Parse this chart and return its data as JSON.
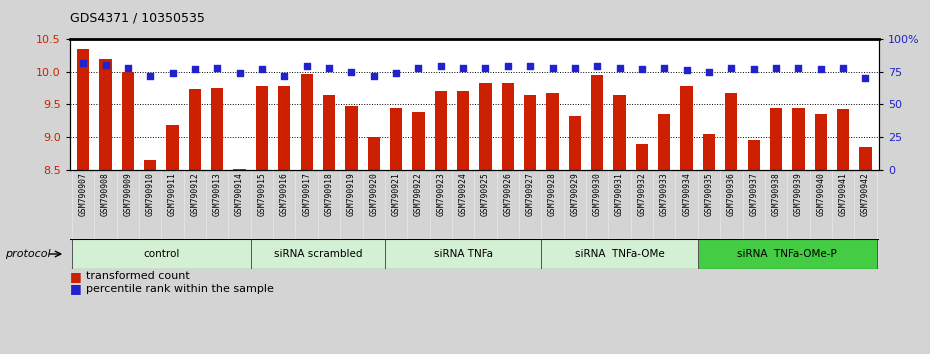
{
  "title": "GDS4371 / 10350535",
  "samples": [
    "GSM790907",
    "GSM790908",
    "GSM790909",
    "GSM790910",
    "GSM790911",
    "GSM790912",
    "GSM790913",
    "GSM790914",
    "GSM790915",
    "GSM790916",
    "GSM790917",
    "GSM790918",
    "GSM790919",
    "GSM790920",
    "GSM790921",
    "GSM790922",
    "GSM790923",
    "GSM790924",
    "GSM790925",
    "GSM790926",
    "GSM790927",
    "GSM790928",
    "GSM790929",
    "GSM790930",
    "GSM790931",
    "GSM790932",
    "GSM790933",
    "GSM790934",
    "GSM790935",
    "GSM790936",
    "GSM790937",
    "GSM790938",
    "GSM790939",
    "GSM790940",
    "GSM790941",
    "GSM790942"
  ],
  "bar_values": [
    10.35,
    10.19,
    10.0,
    8.65,
    9.18,
    9.73,
    9.75,
    8.52,
    9.78,
    9.78,
    9.96,
    9.65,
    9.47,
    9.0,
    9.44,
    9.38,
    9.7,
    9.7,
    9.83,
    9.83,
    9.65,
    9.67,
    9.33,
    9.95,
    9.65,
    8.9,
    9.35,
    9.78,
    9.05,
    9.68,
    8.95,
    9.45,
    9.45,
    9.35,
    9.43,
    8.85
  ],
  "dot_values": [
    82,
    80,
    78,
    72,
    74,
    77,
    78,
    74,
    77,
    72,
    79,
    78,
    75,
    72,
    74,
    78,
    79,
    78,
    78,
    79,
    79,
    78,
    78,
    79,
    78,
    77,
    78,
    76,
    75,
    78,
    77,
    78,
    78,
    77,
    78,
    70
  ],
  "groups": [
    {
      "label": "control",
      "start": 0,
      "end": 8,
      "color": "#d4f0d4"
    },
    {
      "label": "siRNA scrambled",
      "start": 8,
      "end": 14,
      "color": "#d4f0d4"
    },
    {
      "label": "siRNA TNFa",
      "start": 14,
      "end": 21,
      "color": "#d4f0d4"
    },
    {
      "label": "siRNA  TNFa-OMe",
      "start": 21,
      "end": 28,
      "color": "#d4f0d4"
    },
    {
      "label": "siRNA  TNFa-OMe-P",
      "start": 28,
      "end": 36,
      "color": "#44cc44"
    }
  ],
  "bar_color": "#cc2000",
  "dot_color": "#2222cc",
  "ylim_left": [
    8.5,
    10.5
  ],
  "ylim_right": [
    0,
    100
  ],
  "yticks_left": [
    8.5,
    9.0,
    9.5,
    10.0,
    10.5
  ],
  "yticks_right": [
    0,
    25,
    50,
    75,
    100
  ],
  "ytick_labels_right": [
    "0",
    "25",
    "50",
    "75",
    "100%"
  ],
  "bg_color": "#d4d4d4",
  "plot_bg": "#ffffff",
  "tick_area_bg": "#c8c8c8",
  "legend_red": "transformed count",
  "legend_blue": "percentile rank within the sample",
  "protocol_label": "protocol"
}
